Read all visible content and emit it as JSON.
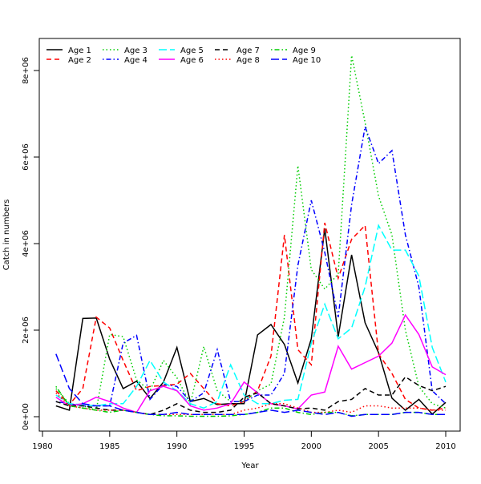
{
  "chart_data": {
    "type": "line",
    "title": "",
    "xlabel": "Year",
    "ylabel": "Catch in numbers",
    "xlim": [
      1980,
      2010
    ],
    "ylim": [
      0,
      8000000
    ],
    "x_ticks": [
      1980,
      1985,
      1990,
      1995,
      2000,
      2005,
      2010
    ],
    "x_tick_labels": [
      "1980",
      "1985",
      "1990",
      "1995",
      "2000",
      "2005",
      "2010"
    ],
    "y_ticks": [
      0,
      2000000,
      4000000,
      6000000,
      8000000
    ],
    "y_tick_labels": [
      "0e+00",
      "2e+06",
      "4e+06",
      "6e+06",
      "8e+06"
    ],
    "grid": false,
    "legend_position": "top-left",
    "x": [
      1981,
      1982,
      1983,
      1984,
      1985,
      1986,
      1987,
      1988,
      1989,
      1990,
      1991,
      1992,
      1993,
      1994,
      1995,
      1996,
      1997,
      1998,
      1999,
      2000,
      2001,
      2002,
      2003,
      2004,
      2005,
      2006,
      2007,
      2008,
      2009,
      2010
    ],
    "series": [
      {
        "name": "Age 1",
        "color": "#000000",
        "dash": "solid",
        "values": [
          250000,
          150000,
          2270000,
          2280000,
          1330000,
          650000,
          820000,
          420000,
          800000,
          1600000,
          350000,
          420000,
          280000,
          300000,
          300000,
          1890000,
          2130000,
          1670000,
          780000,
          1800000,
          4350000,
          1850000,
          3740000,
          2170000,
          1480000,
          430000,
          150000,
          400000,
          60000,
          330000
        ]
      },
      {
        "name": "Age 2",
        "color": "#ff0000",
        "dash": "dashed",
        "values": [
          600000,
          280000,
          650000,
          2300000,
          2050000,
          1300000,
          600000,
          700000,
          720000,
          750000,
          1000000,
          650000,
          300000,
          250000,
          350000,
          600000,
          1400000,
          4200000,
          1550000,
          1200000,
          4480000,
          3200000,
          4100000,
          4420000,
          1450000,
          1000000,
          400000,
          200000,
          150000,
          200000
        ]
      },
      {
        "name": "Age 3",
        "color": "#00cd00",
        "dash": "dotted",
        "values": [
          650000,
          300000,
          250000,
          150000,
          1900000,
          1850000,
          850000,
          600000,
          1300000,
          900000,
          300000,
          1620000,
          600000,
          350000,
          350000,
          600000,
          750000,
          2300000,
          5800000,
          3400000,
          2950000,
          3300000,
          8350000,
          6800000,
          5100000,
          4200000,
          2000000,
          700000,
          300000,
          200000
        ]
      },
      {
        "name": "Age 4",
        "color": "#0000ff",
        "dash": "dotdash",
        "values": [
          350000,
          300000,
          250000,
          250000,
          250000,
          1700000,
          1880000,
          400000,
          750000,
          700000,
          350000,
          550000,
          1550000,
          350000,
          350000,
          500000,
          500000,
          1000000,
          3500000,
          5000000,
          3800000,
          2300000,
          4900000,
          6700000,
          5850000,
          6150000,
          4200000,
          3000000,
          600000,
          300000
        ]
      },
      {
        "name": "Age 5",
        "color": "#00ffff",
        "dash": "longdash",
        "values": [
          500000,
          300000,
          280000,
          250000,
          300000,
          300000,
          700000,
          1300000,
          800000,
          600000,
          300000,
          200000,
          350000,
          1200000,
          500000,
          300000,
          300000,
          380000,
          400000,
          1700000,
          2600000,
          1800000,
          2050000,
          3000000,
          4420000,
          3850000,
          3850000,
          3250000,
          1600000,
          800000
        ]
      },
      {
        "name": "Age 6",
        "color": "#ff00ff",
        "dash": "solid",
        "values": [
          450000,
          250000,
          300000,
          450000,
          350000,
          200000,
          100000,
          600000,
          700000,
          600000,
          250000,
          150000,
          200000,
          300000,
          800000,
          550000,
          300000,
          250000,
          180000,
          500000,
          570000,
          1630000,
          1100000,
          1250000,
          1400000,
          1700000,
          2350000,
          1900000,
          1150000,
          970000
        ]
      },
      {
        "name": "Age 7",
        "color": "#000000",
        "dash": "dashed",
        "values": [
          350000,
          250000,
          250000,
          200000,
          150000,
          150000,
          100000,
          50000,
          150000,
          300000,
          150000,
          100000,
          100000,
          150000,
          450000,
          550000,
          300000,
          250000,
          180000,
          200000,
          150000,
          350000,
          400000,
          650000,
          500000,
          500000,
          920000,
          720000,
          600000,
          700000
        ]
      },
      {
        "name": "Age 8",
        "color": "#ff0000",
        "dash": "dotted",
        "values": [
          550000,
          250000,
          200000,
          150000,
          150000,
          150000,
          100000,
          50000,
          50000,
          50000,
          50000,
          50000,
          50000,
          50000,
          150000,
          200000,
          300000,
          300000,
          200000,
          100000,
          100000,
          150000,
          100000,
          250000,
          250000,
          200000,
          200000,
          200000,
          150000,
          150000
        ]
      },
      {
        "name": "Age 9",
        "color": "#00cd00",
        "dash": "dotdash",
        "values": [
          700000,
          250000,
          200000,
          150000,
          100000,
          150000,
          100000,
          50000,
          20000,
          20000,
          10000,
          10000,
          10000,
          20000,
          50000,
          100000,
          200000,
          200000,
          100000,
          50000,
          100000,
          100000,
          20000,
          50000,
          50000,
          50000,
          100000,
          100000,
          50000,
          50000
        ]
      },
      {
        "name": "Age 10",
        "color": "#0000ff",
        "dash": "longdash",
        "values": [
          1450000,
          650000,
          300000,
          250000,
          250000,
          150000,
          100000,
          50000,
          50000,
          100000,
          50000,
          50000,
          50000,
          50000,
          50000,
          100000,
          150000,
          100000,
          150000,
          100000,
          50000,
          100000,
          10000,
          50000,
          50000,
          50000,
          100000,
          100000,
          50000,
          50000
        ]
      }
    ]
  }
}
